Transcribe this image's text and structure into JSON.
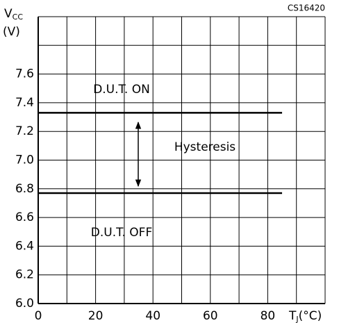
{
  "chart_data": {
    "type": "line",
    "figure_code": "CS16420",
    "ylabel": {
      "symbol": "V",
      "subscript": "CC",
      "unit": "(V)"
    },
    "xlabel": {
      "symbol": "T",
      "subscript": "J",
      "unit": "(°C)"
    },
    "x": [
      0,
      85
    ],
    "series": [
      {
        "color": "#000000",
        "values": [
          7.33,
          7.33
        ]
      },
      {
        "color": "#000000",
        "values": [
          6.77,
          6.77
        ]
      }
    ],
    "annotations": [
      "D.U.T. ON",
      "Hysteresis",
      "D.U.T. OFF"
    ],
    "xlim": [
      0,
      100
    ],
    "xticks": [
      0,
      20,
      40,
      60,
      80
    ],
    "xgrid": [
      10,
      30,
      50,
      70,
      90,
      100
    ],
    "ylim": [
      6.0,
      8.0
    ],
    "yticks": [
      {
        "value": 6.0,
        "label": "6.0"
      },
      {
        "value": 6.2,
        "label": "6.2"
      },
      {
        "value": 6.4,
        "label": "6.4"
      },
      {
        "value": 6.6,
        "label": "6.6"
      },
      {
        "value": 6.8,
        "label": "6.8"
      },
      {
        "value": 7.0,
        "label": "7.0"
      },
      {
        "value": 7.2,
        "label": "7.2"
      },
      {
        "value": 7.4,
        "label": "7.4"
      },
      {
        "value": 7.6,
        "label": "7.6"
      }
    ],
    "ygrid": [
      7.8,
      8.0
    ],
    "grid": true
  }
}
